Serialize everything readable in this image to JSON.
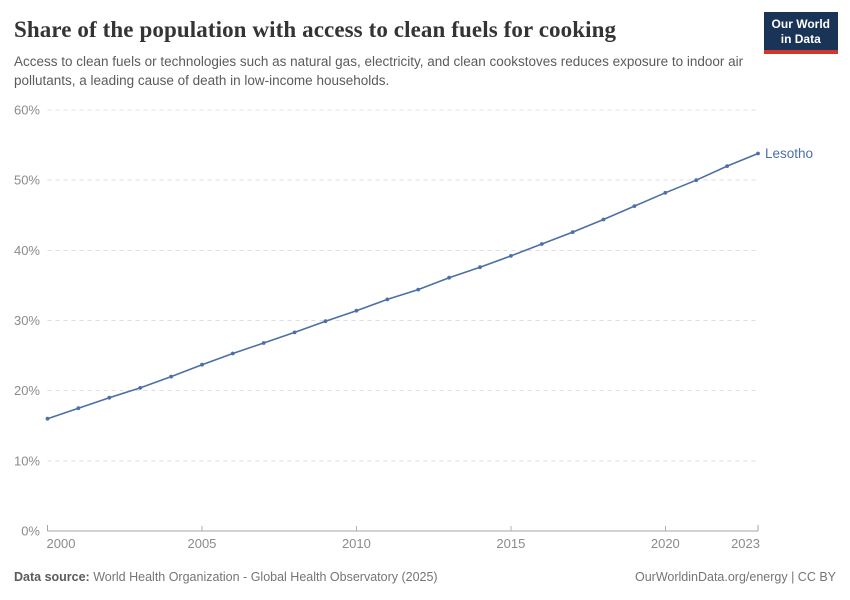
{
  "header": {
    "title": "Share of the population with access to clean fuels for cooking",
    "subtitle": "Access to clean fuels or technologies such as natural gas, electricity, and clean cookstoves reduces exposure to indoor air pollutants, a leading cause of death in low-income households.",
    "logo": {
      "line1": "Our World",
      "line2": "in Data"
    }
  },
  "colors": {
    "series_blue": "#4C6FA5",
    "logo_bg": "#1a3457",
    "logo_accent": "#d0382f",
    "gridline": "#dddddd",
    "axis": "#a5a5a5",
    "tick_text": "#8b8b8b"
  },
  "chart_data": {
    "type": "line",
    "title": "Share of the population with access to clean fuels for cooking",
    "xlabel": "",
    "ylabel": "",
    "xlim": [
      2000,
      2023
    ],
    "ylim": [
      0,
      60
    ],
    "x_ticks": [
      2000,
      2005,
      2010,
      2015,
      2020,
      2023
    ],
    "y_ticks": [
      0,
      10,
      20,
      30,
      40,
      50,
      60
    ],
    "y_tick_suffix": "%",
    "grid": "horizontal-dashed",
    "legend_position": "end-of-line-label",
    "series": [
      {
        "name": "Lesotho",
        "color": "#4C6FA5",
        "x": [
          2000,
          2001,
          2002,
          2003,
          2004,
          2005,
          2006,
          2007,
          2008,
          2009,
          2010,
          2011,
          2012,
          2013,
          2014,
          2015,
          2016,
          2017,
          2018,
          2019,
          2020,
          2021,
          2022,
          2023
        ],
        "values": [
          16.0,
          17.5,
          19.0,
          20.4,
          22.0,
          23.7,
          25.3,
          26.8,
          28.3,
          29.9,
          31.4,
          33.0,
          34.4,
          36.1,
          37.6,
          39.2,
          40.9,
          42.6,
          44.4,
          46.3,
          48.2,
          50.0,
          52.0,
          53.8
        ]
      }
    ]
  },
  "footer": {
    "source_label": "Data source:",
    "source_text": "World Health Organization - Global Health Observatory (2025)",
    "right_text": "OurWorldinData.org/energy | CC BY"
  }
}
